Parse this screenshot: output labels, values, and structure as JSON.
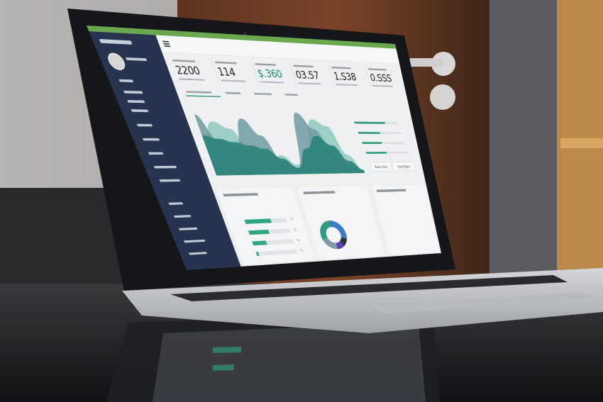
{
  "scene": {
    "description_tag": "laptop-on-glass-table",
    "accent": "#2ea586",
    "sidebar_color": "#26344f",
    "topbar_color": "#6aa84f"
  },
  "dashboard": {
    "kpis": [
      {
        "value": "2200"
      },
      {
        "value": "114"
      },
      {
        "value": "$.360",
        "color": "#1e8a6e"
      },
      {
        "value": "03.57"
      },
      {
        "value": "1.S38"
      },
      {
        "value": "0.SSS"
      }
    ],
    "area_chart": {
      "type": "area",
      "series": [
        {
          "color": "#8fc9bf",
          "values": [
            55,
            80,
            70,
            35,
            20,
            30,
            15,
            40,
            85,
            75,
            30,
            5
          ]
        },
        {
          "color": "#6e9aa0",
          "values": [
            90,
            50,
            40,
            85,
            60,
            20,
            10,
            95,
            70,
            30,
            10,
            0
          ]
        },
        {
          "color": "#2f857a",
          "values": [
            60,
            55,
            50,
            45,
            40,
            25,
            10,
            40,
            60,
            45,
            20,
            5
          ]
        }
      ]
    },
    "legend_progress": [
      0.7,
      0.5,
      0.45,
      0.48
    ],
    "buttons": [
      "Save Doc",
      "Dos Rgns"
    ],
    "bar_card": {
      "values": [
        0.62,
        0.48,
        0.33,
        0.05
      ],
      "pct_labels": [
        "%",
        "%",
        "%",
        "%"
      ]
    },
    "donut": {
      "slices": [
        {
          "value": 30,
          "color": "#3d7cc9"
        },
        {
          "value": 10,
          "color": "#2b3440"
        },
        {
          "value": 10,
          "color": "#5b3fb8"
        },
        {
          "value": 20,
          "color": "#7b9aa5"
        },
        {
          "value": 30,
          "color": "#2e9a7f"
        }
      ]
    }
  }
}
